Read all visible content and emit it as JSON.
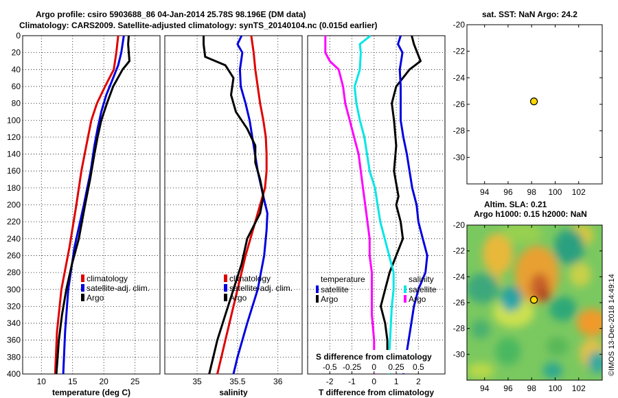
{
  "header": {
    "title_line1": "Argo profile: csiro 5903688_86 04-Jan-2014 25.78S 98.196E (DM data)",
    "title_line2": "Climatology: CARS2009. Satellite-adjusted climatology: synTS_20140104.nc (0.015d earlier)"
  },
  "credit": "©IMOS 13-Dec-2018 14:49:14",
  "colors": {
    "red": "#e00000",
    "blue": "#0000e0",
    "black": "#000000",
    "magenta": "#ff00ff",
    "cyan": "#00e6e6",
    "marker": "#ffd700"
  },
  "chart_data": [
    {
      "type": "line",
      "name": "temperature-profile",
      "xlabel": "temperature (deg C)",
      "ylabel": "depth",
      "xlim": [
        7,
        29
      ],
      "ylim": [
        0,
        400
      ],
      "y_inverted": true,
      "xticks": [
        10,
        15,
        20,
        25
      ],
      "yticks": [
        0,
        20,
        40,
        60,
        80,
        100,
        120,
        140,
        160,
        180,
        200,
        220,
        240,
        260,
        280,
        300,
        320,
        340,
        360,
        380,
        400
      ],
      "grid": true,
      "legend": [
        "climatology",
        "satellite-adj. clim.",
        "Argo"
      ],
      "legend_colors": [
        "#e00000",
        "#0000e0",
        "#000000"
      ],
      "series": [
        {
          "name": "climatology",
          "color": "#e00000",
          "depth": [
            0,
            20,
            40,
            60,
            80,
            100,
            130,
            160,
            200,
            250,
            300,
            350,
            400
          ],
          "values": [
            22.3,
            22.0,
            21.6,
            20.2,
            18.9,
            18.0,
            17.2,
            16.4,
            15.6,
            14.5,
            13.2,
            12.5,
            12.2
          ]
        },
        {
          "name": "satellite-adj. clim.",
          "color": "#0000e0",
          "depth": [
            0,
            10,
            20,
            35,
            50,
            70,
            90,
            110,
            130,
            160,
            200,
            250,
            300,
            350,
            400
          ],
          "values": [
            23.2,
            23.0,
            22.8,
            22.3,
            21.5,
            20.4,
            19.6,
            19.0,
            18.5,
            17.9,
            16.8,
            15.3,
            14.3,
            13.8,
            13.5
          ]
        },
        {
          "name": "Argo",
          "color": "#000000",
          "depth": [
            0,
            10,
            30,
            40,
            60,
            80,
            100,
            120,
            140,
            170,
            200,
            240,
            270,
            300,
            330,
            360,
            400
          ],
          "values": [
            24.0,
            23.9,
            24.1,
            23.0,
            21.5,
            20.5,
            19.6,
            19.0,
            18.5,
            17.8,
            17.0,
            16.0,
            14.9,
            14.0,
            13.3,
            12.8,
            12.4
          ]
        }
      ]
    },
    {
      "type": "line",
      "name": "salinity-profile",
      "xlabel": "salinity",
      "ylabel": "depth",
      "xlim": [
        34.6,
        36.3
      ],
      "ylim": [
        0,
        400
      ],
      "y_inverted": true,
      "xticks": [
        35,
        35.5,
        36
      ],
      "xtick_labels": [
        "35",
        "35.5",
        "36"
      ],
      "grid": true,
      "legend": [
        "climatology",
        "satellite-adj. clim.",
        "Argo"
      ],
      "legend_colors": [
        "#e00000",
        "#0000e0",
        "#000000"
      ],
      "series": [
        {
          "name": "climatology",
          "color": "#e00000",
          "depth": [
            0,
            20,
            40,
            60,
            80,
            100,
            120,
            140,
            160,
            180,
            200,
            220,
            240,
            260,
            280,
            300,
            320,
            340,
            360,
            380,
            400
          ],
          "values": [
            35.67,
            35.7,
            35.72,
            35.75,
            35.78,
            35.82,
            35.85,
            35.86,
            35.86,
            35.84,
            35.78,
            35.72,
            35.66,
            35.6,
            35.55,
            35.5,
            35.45,
            35.4,
            35.35,
            35.3,
            35.25
          ]
        },
        {
          "name": "satellite-adj. clim.",
          "color": "#0000e0",
          "depth": [
            0,
            10,
            20,
            40,
            60,
            80,
            100,
            130,
            160,
            190,
            210,
            230,
            260,
            300,
            340,
            380,
            400
          ],
          "values": [
            35.55,
            35.5,
            35.56,
            35.53,
            35.54,
            35.6,
            35.65,
            35.7,
            35.75,
            35.82,
            35.87,
            35.86,
            35.83,
            35.75,
            35.62,
            35.5,
            35.45
          ]
        },
        {
          "name": "Argo",
          "color": "#000000",
          "depth": [
            0,
            10,
            25,
            35,
            50,
            70,
            90,
            110,
            130,
            150,
            170,
            190,
            210,
            240,
            270,
            300,
            330,
            360,
            400
          ],
          "values": [
            35.08,
            35.08,
            35.1,
            35.35,
            35.45,
            35.42,
            35.48,
            35.62,
            35.72,
            35.72,
            35.78,
            35.82,
            35.78,
            35.62,
            35.55,
            35.45,
            35.35,
            35.25,
            35.15
          ]
        }
      ]
    },
    {
      "type": "line",
      "name": "difference-from-climatology",
      "xlabel": "T difference from climatology",
      "x2label": "S difference from climatology",
      "ylabel": "depth",
      "xlim": [
        -3,
        3.2
      ],
      "ylim": [
        0,
        400
      ],
      "y_inverted": true,
      "xticks": [
        -2,
        -1,
        0,
        1,
        2
      ],
      "x2ticks": [
        -0.5,
        -0.25,
        0,
        0.25,
        0.5
      ],
      "x2tick_labels": [
        "-0.5",
        "-0.25",
        "0",
        "0.25",
        "0.5"
      ],
      "x2lim": [
        -0.75,
        0.8
      ],
      "grid": true,
      "legend_temperature_title": "temperature",
      "legend_salinity_title": "salinity",
      "legend": [
        "satellite",
        "Argo"
      ],
      "series": [
        {
          "name": "temperature satellite",
          "color": "#ff00ff",
          "depth": [
            0,
            20,
            30,
            40,
            60,
            80,
            100,
            120,
            140,
            160,
            180,
            200,
            220,
            240,
            260,
            280,
            300,
            330,
            360,
            400
          ],
          "values": [
            -2.2,
            -2.2,
            -2.0,
            -1.6,
            -1.4,
            -1.3,
            -1.1,
            -0.9,
            -0.7,
            -0.6,
            -0.5,
            -0.4,
            -0.3,
            -0.2,
            -0.2,
            -0.1,
            -0.1,
            -0.1,
            0,
            0
          ]
        },
        {
          "name": "temperature Argo",
          "color": "#000000",
          "depth": [
            0,
            10,
            30,
            40,
            60,
            80,
            100,
            130,
            160,
            190,
            200,
            220,
            240,
            260,
            280,
            300,
            320,
            340,
            360,
            380,
            400
          ],
          "values": [
            1.7,
            1.8,
            2.1,
            1.6,
            1.0,
            0.8,
            0.9,
            1.0,
            0.9,
            1.1,
            1.0,
            1.2,
            1.3,
            1.0,
            0.7,
            0.5,
            0.3,
            0.5,
            0.6,
            0.6,
            0.7
          ]
        },
        {
          "name": "salinity satellite",
          "color": "#00e6e6",
          "depth": [
            0,
            10,
            20,
            40,
            60,
            80,
            100,
            120,
            140,
            160,
            180,
            200,
            220,
            240,
            260,
            280,
            300,
            320,
            340,
            360,
            380,
            400
          ],
          "values": [
            -0.04,
            -0.16,
            -0.15,
            -0.16,
            -0.22,
            -0.2,
            -0.16,
            -0.11,
            -0.08,
            -0.05,
            0.01,
            0.04,
            0.07,
            0.12,
            0.17,
            0.22,
            0.22,
            0.2,
            0.19,
            0.18,
            0.17,
            0.17
          ]
        },
        {
          "name": "salinity Argo",
          "color": "#0000e0",
          "depth": [
            0,
            10,
            20,
            40,
            60,
            80,
            100,
            120,
            140,
            160,
            180,
            200,
            220,
            240,
            260,
            280,
            300,
            320,
            340,
            360,
            380,
            400
          ],
          "values": [
            0.3,
            0.27,
            0.32,
            0.29,
            0.3,
            0.3,
            0.3,
            0.33,
            0.37,
            0.4,
            0.43,
            0.48,
            0.5,
            0.55,
            0.6,
            0.58,
            0.5,
            0.45,
            0.42,
            0.39,
            0.36,
            0.33
          ]
        }
      ]
    },
    {
      "type": "scatter",
      "name": "sst-map",
      "title": "sat. SST: NaN Argo: 24.2",
      "xlim": [
        92.5,
        104
      ],
      "ylim": [
        -32,
        -20
      ],
      "xticks": [
        94,
        96,
        98,
        100,
        102
      ],
      "yticks": [
        -20,
        -22,
        -24,
        -26,
        -28,
        -30
      ],
      "points": [
        {
          "x": 98.196,
          "y": -25.78
        }
      ]
    },
    {
      "type": "heatmap",
      "name": "altimetry-map",
      "title": "Altim. SLA: 0.21",
      "subtitle": "Argo h1000: 0.15 h2000: NaN",
      "xlim": [
        92.5,
        104
      ],
      "ylim": [
        -32,
        -20
      ],
      "xticks": [
        94,
        96,
        98,
        100,
        102
      ],
      "yticks": [
        -20,
        -22,
        -24,
        -26,
        -28,
        -30
      ],
      "points": [
        {
          "x": 98.196,
          "y": -25.78
        }
      ]
    }
  ]
}
